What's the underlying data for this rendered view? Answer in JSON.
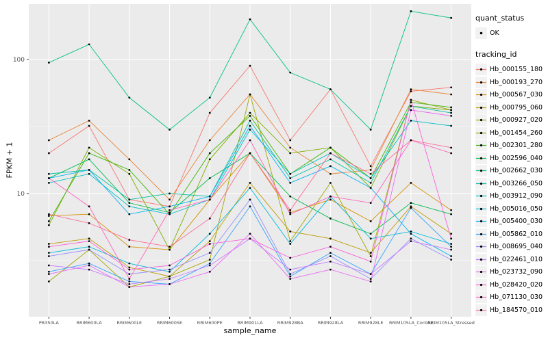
{
  "chart_data": {
    "type": "line",
    "title": "",
    "xlabel": "sample_name",
    "ylabel": "FPKM + 1",
    "y_scale": "log10",
    "ylim": [
      1.2,
      260
    ],
    "y_major_ticks": [
      10,
      100
    ],
    "y_minor_gridlines": [
      3.162,
      31.62
    ],
    "grid": true,
    "panel_bg": "#EBEBEB",
    "grid_color": "#FFFFFF",
    "tick_text_color": "#4D4D4D",
    "point_color": "#000000",
    "legend_position": "right",
    "categories": [
      "PB350LA",
      "RRIM600LA",
      "RRIM600LE",
      "RRIM600SE",
      "RRIM600PE",
      "RRIM901LA",
      "RRIM928BA",
      "RRIM928LA",
      "RRIM928LE",
      "RRIM105LA_Control",
      "RRIM105LA_Stressed"
    ],
    "series": [
      {
        "name": "Hb_000155_180",
        "color": "#F8766D",
        "values": [
          20,
          32,
          9,
          8,
          40,
          90,
          25,
          60,
          16,
          58,
          62
        ]
      },
      {
        "name": "Hb_000193_270",
        "color": "#EA8331",
        "values": [
          25,
          35,
          18,
          9,
          25,
          55,
          22,
          14,
          15,
          60,
          55
        ]
      },
      {
        "name": "Hb_000567_030",
        "color": "#D89000",
        "values": [
          6.8,
          7.0,
          4.0,
          3.8,
          9.0,
          20,
          7.2,
          9.0,
          6.2,
          12,
          7.5
        ]
      },
      {
        "name": "Hb_000795_060",
        "color": "#C09B00",
        "values": [
          4.2,
          4.6,
          2.8,
          2.4,
          4.4,
          12,
          5.2,
          4.6,
          3.6,
          8.0,
          5.0
        ]
      },
      {
        "name": "Hb_000927_020",
        "color": "#A3A500",
        "values": [
          2.2,
          3.8,
          2.0,
          2.4,
          3.2,
          55,
          4.4,
          12,
          3.4,
          50,
          42
        ]
      },
      {
        "name": "Hb_001454_260",
        "color": "#7CAE00",
        "values": [
          5.8,
          22,
          14,
          3.8,
          18,
          40,
          20,
          22,
          11,
          45,
          42
        ]
      },
      {
        "name": "Hb_002301_280",
        "color": "#39B600",
        "values": [
          6.2,
          20,
          15,
          7.0,
          20,
          38,
          14,
          22,
          13,
          48,
          44
        ]
      },
      {
        "name": "Hb_002596_040",
        "color": "#00BB4E",
        "values": [
          13,
          18,
          8.5,
          7.2,
          13,
          20,
          9.5,
          6.5,
          5.0,
          8.5,
          7.0
        ]
      },
      {
        "name": "Hb_002662_030",
        "color": "#00C087",
        "values": [
          95,
          130,
          52,
          30,
          52,
          200,
          80,
          60,
          30,
          230,
          205
        ]
      },
      {
        "name": "Hb_003266_050",
        "color": "#00C1A2",
        "values": [
          14,
          15,
          9.0,
          10,
          9.5,
          35,
          13,
          18,
          12,
          45,
          40
        ]
      },
      {
        "name": "Hb_003912_090",
        "color": "#00BFC4",
        "values": [
          12,
          14,
          8.0,
          7.0,
          9.0,
          30,
          14,
          20,
          13,
          35,
          32
        ]
      },
      {
        "name": "Hb_005016_050",
        "color": "#00BAE0",
        "values": [
          3.6,
          4.0,
          3.0,
          2.6,
          5.0,
          11,
          4.2,
          9.5,
          4.6,
          5.2,
          4.2
        ]
      },
      {
        "name": "Hb_005400_030",
        "color": "#00B2F3",
        "values": [
          13,
          15,
          7.0,
          8.0,
          9.5,
          32,
          12,
          16,
          11,
          5.0,
          3.4
        ]
      },
      {
        "name": "Hb_005862_010",
        "color": "#35A2FF",
        "values": [
          2.6,
          3.0,
          2.2,
          2.1,
          3.0,
          8.0,
          2.4,
          3.6,
          2.5,
          7.8,
          4.0
        ]
      },
      {
        "name": "Hb_008695_040",
        "color": "#9590FF",
        "values": [
          3.4,
          3.8,
          2.5,
          2.7,
          3.6,
          9.0,
          2.5,
          3.4,
          2.3,
          4.6,
          3.2
        ]
      },
      {
        "name": "Hb_022461_010",
        "color": "#C77CFF",
        "values": [
          2.9,
          2.7,
          2.1,
          2.3,
          2.9,
          4.6,
          2.7,
          3.1,
          2.5,
          4.4,
          3.8
        ]
      },
      {
        "name": "Hb_023732_090",
        "color": "#E76BF3",
        "values": [
          2.5,
          2.9,
          2.0,
          2.1,
          2.6,
          5.0,
          2.3,
          2.7,
          2.2,
          42,
          38
        ]
      },
      {
        "name": "Hb_028420_020",
        "color": "#FA62DB",
        "values": [
          4.0,
          4.4,
          2.7,
          2.9,
          4.2,
          4.6,
          3.3,
          4.0,
          3.1,
          50,
          4.6
        ]
      },
      {
        "name": "Hb_071130_030",
        "color": "#FF62BC",
        "values": [
          13,
          8.0,
          2.3,
          7.5,
          9.0,
          25,
          7.0,
          9.5,
          8.5,
          25,
          20
        ]
      },
      {
        "name": "Hb_184570_010",
        "color": "#FF6A98",
        "values": [
          7.0,
          6.0,
          4.5,
          4.0,
          6.5,
          20,
          7.5,
          20,
          14,
          25,
          22
        ]
      }
    ],
    "legend": {
      "quant_status": {
        "title": "quant_status",
        "items": [
          {
            "label": "OK",
            "marker": "point",
            "color": "#000000"
          }
        ]
      },
      "tracking_id": {
        "title": "tracking_id"
      }
    }
  }
}
